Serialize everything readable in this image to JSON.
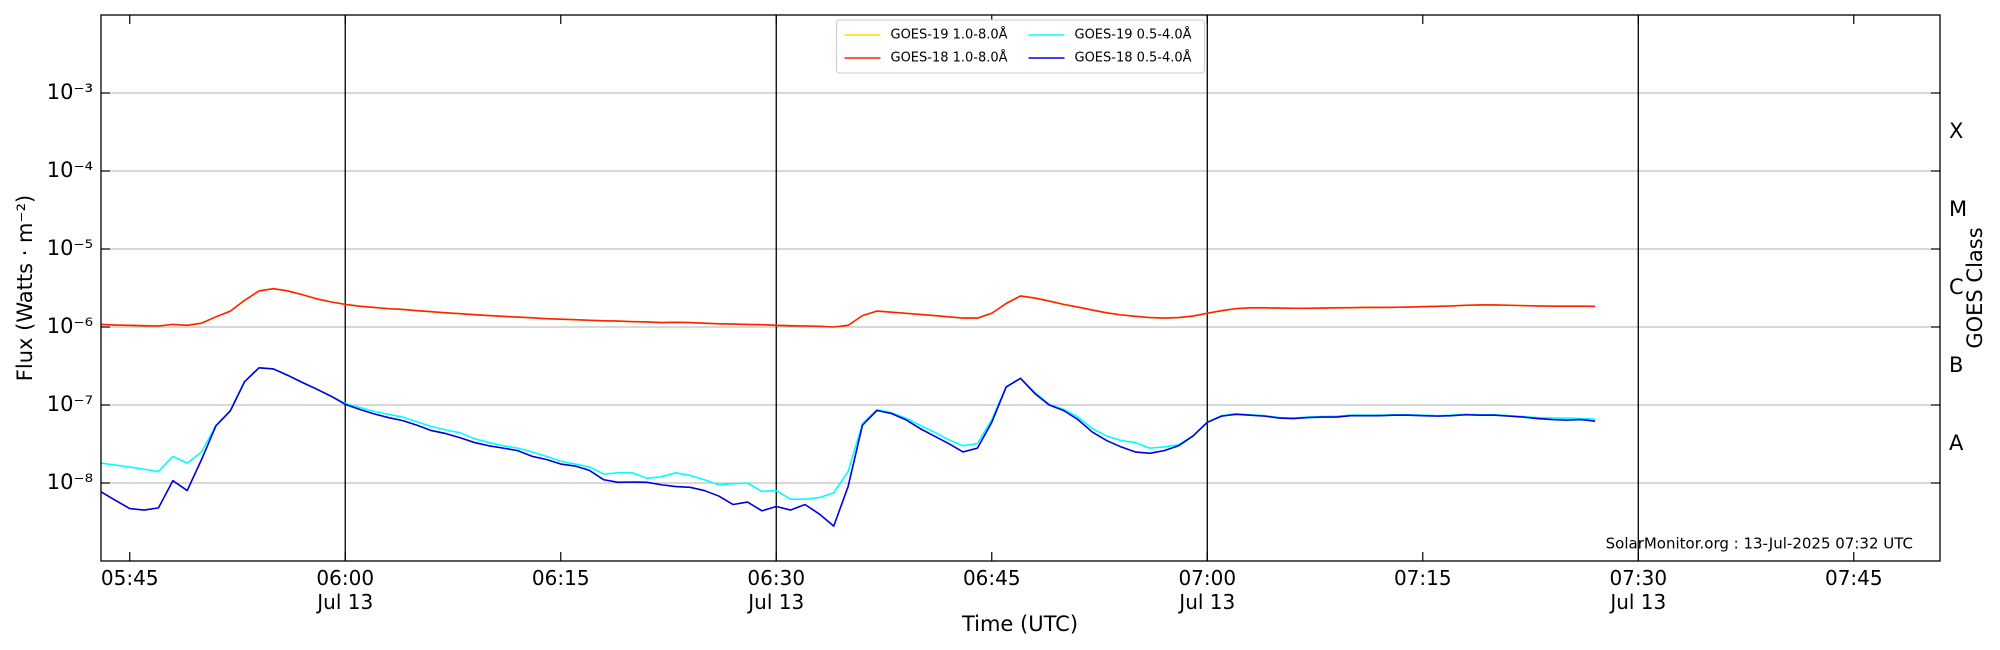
{
  "chart_data": {
    "type": "line",
    "xlabel": "Time (UTC)",
    "ylabel": "Flux (Watts · m⁻²)",
    "y2label": "GOES Class",
    "annotation": "SolarMonitor.org : 13-Jul-2025 07:32 UTC",
    "yscale": "log",
    "grid": true,
    "legend": "upper center",
    "xlim": [
      "05:43",
      "07:51"
    ],
    "xticks": [
      {
        "value": "05:45",
        "label": "05:45"
      },
      {
        "value": "06:00",
        "label": "06:00\nJul 13"
      },
      {
        "value": "06:15",
        "label": "06:15"
      },
      {
        "value": "06:30",
        "label": "06:30\nJul 13"
      },
      {
        "value": "06:45",
        "label": "06:45"
      },
      {
        "value": "07:00",
        "label": "07:00\nJul 13"
      },
      {
        "value": "07:15",
        "label": "07:15"
      },
      {
        "value": "07:30",
        "label": "07:30\nJul 13"
      },
      {
        "value": "07:45",
        "label": "07:45"
      }
    ],
    "vlines": [
      "06:00",
      "06:30",
      "07:00",
      "07:30"
    ],
    "ylim": [
      1e-09,
      0.01
    ],
    "yticks": [
      {
        "value": 1e-08,
        "label": "10⁻⁸"
      },
      {
        "value": 1e-07,
        "label": "10⁻⁷"
      },
      {
        "value": 1e-06,
        "label": "10⁻⁶"
      },
      {
        "value": 1e-05,
        "label": "10⁻⁵"
      },
      {
        "value": 0.0001,
        "label": "10⁻⁴"
      },
      {
        "value": 0.001,
        "label": "10⁻³"
      }
    ],
    "y2_classes": [
      {
        "label": "A",
        "range": [
          1e-08,
          1e-07
        ]
      },
      {
        "label": "B",
        "range": [
          1e-07,
          1e-06
        ]
      },
      {
        "label": "C",
        "range": [
          1e-06,
          1e-05
        ]
      },
      {
        "label": "M",
        "range": [
          1e-05,
          0.0001
        ]
      },
      {
        "label": "X",
        "range": [
          0.0001,
          0.001
        ]
      }
    ],
    "x": [
      "05:43",
      "05:44",
      "05:45",
      "05:46",
      "05:47",
      "05:48",
      "05:49",
      "05:50",
      "05:51",
      "05:52",
      "05:53",
      "05:54",
      "05:55",
      "05:56",
      "05:57",
      "05:58",
      "05:59",
      "06:00",
      "06:01",
      "06:02",
      "06:03",
      "06:04",
      "06:05",
      "06:06",
      "06:07",
      "06:08",
      "06:09",
      "06:10",
      "06:11",
      "06:12",
      "06:13",
      "06:14",
      "06:15",
      "06:16",
      "06:17",
      "06:18",
      "06:19",
      "06:20",
      "06:21",
      "06:22",
      "06:23",
      "06:24",
      "06:25",
      "06:26",
      "06:27",
      "06:28",
      "06:29",
      "06:30",
      "06:31",
      "06:32",
      "06:33",
      "06:34",
      "06:35",
      "06:36",
      "06:37",
      "06:38",
      "06:39",
      "06:40",
      "06:41",
      "06:42",
      "06:43",
      "06:44",
      "06:45",
      "06:46",
      "06:47",
      "06:48",
      "06:49",
      "06:50",
      "06:51",
      "06:52",
      "06:53",
      "06:54",
      "06:55",
      "06:56",
      "06:57",
      "06:58",
      "06:59",
      "07:00",
      "07:01",
      "07:02",
      "07:03",
      "07:04",
      "07:05",
      "07:06",
      "07:07",
      "07:08",
      "07:09",
      "07:10",
      "07:11",
      "07:12",
      "07:13",
      "07:14",
      "07:15",
      "07:16",
      "07:17",
      "07:18",
      "07:19",
      "07:20",
      "07:21",
      "07:22",
      "07:23",
      "07:24",
      "07:25",
      "07:26",
      "07:27"
    ],
    "series": [
      {
        "name": "GOES-19 1.0-8.0Å",
        "color": "#ffd700",
        "values": [
          1.08e-06,
          1.06e-06,
          1.05e-06,
          1.04e-06,
          1.03e-06,
          1.08e-06,
          1.05e-06,
          1.12e-06,
          1.35e-06,
          1.6e-06,
          2.2e-06,
          2.9e-06,
          3.1e-06,
          2.9e-06,
          2.6e-06,
          2.3e-06,
          2.1e-06,
          1.95e-06,
          1.85e-06,
          1.78e-06,
          1.72e-06,
          1.68e-06,
          1.62e-06,
          1.57e-06,
          1.52e-06,
          1.48e-06,
          1.44e-06,
          1.4e-06,
          1.37e-06,
          1.34e-06,
          1.31e-06,
          1.28e-06,
          1.26e-06,
          1.24e-06,
          1.22e-06,
          1.2e-06,
          1.19e-06,
          1.17e-06,
          1.16e-06,
          1.14e-06,
          1.15e-06,
          1.14e-06,
          1.12e-06,
          1.1e-06,
          1.09e-06,
          1.08e-06,
          1.07e-06,
          1.05e-06,
          1.04e-06,
          1.03e-06,
          1.02e-06,
          1e-06,
          1.05e-06,
          1.4e-06,
          1.6e-06,
          1.55e-06,
          1.5e-06,
          1.45e-06,
          1.4e-06,
          1.35e-06,
          1.3e-06,
          1.3e-06,
          1.5e-06,
          2e-06,
          2.5e-06,
          2.35e-06,
          2.15e-06,
          1.95e-06,
          1.8e-06,
          1.65e-06,
          1.52e-06,
          1.43e-06,
          1.37e-06,
          1.32e-06,
          1.3e-06,
          1.32e-06,
          1.38e-06,
          1.5e-06,
          1.62e-06,
          1.72e-06,
          1.76e-06,
          1.76e-06,
          1.75e-06,
          1.74e-06,
          1.74e-06,
          1.75e-06,
          1.76e-06,
          1.77e-06,
          1.78e-06,
          1.78e-06,
          1.79e-06,
          1.8e-06,
          1.82e-06,
          1.84e-06,
          1.86e-06,
          1.9e-06,
          1.92e-06,
          1.92e-06,
          1.9e-06,
          1.88e-06,
          1.86e-06,
          1.85e-06,
          1.85e-06,
          1.85e-06,
          1.84e-06
        ]
      },
      {
        "name": "GOES-18 1.0-8.0Å",
        "color": "#ff2200",
        "values": [
          1.08e-06,
          1.06e-06,
          1.05e-06,
          1.04e-06,
          1.03e-06,
          1.08e-06,
          1.05e-06,
          1.12e-06,
          1.35e-06,
          1.6e-06,
          2.2e-06,
          2.9e-06,
          3.1e-06,
          2.9e-06,
          2.6e-06,
          2.3e-06,
          2.1e-06,
          1.95e-06,
          1.85e-06,
          1.78e-06,
          1.72e-06,
          1.68e-06,
          1.62e-06,
          1.57e-06,
          1.52e-06,
          1.48e-06,
          1.44e-06,
          1.4e-06,
          1.37e-06,
          1.34e-06,
          1.31e-06,
          1.28e-06,
          1.26e-06,
          1.24e-06,
          1.22e-06,
          1.2e-06,
          1.19e-06,
          1.17e-06,
          1.16e-06,
          1.14e-06,
          1.15e-06,
          1.14e-06,
          1.12e-06,
          1.1e-06,
          1.09e-06,
          1.08e-06,
          1.07e-06,
          1.05e-06,
          1.04e-06,
          1.03e-06,
          1.02e-06,
          1e-06,
          1.05e-06,
          1.4e-06,
          1.6e-06,
          1.55e-06,
          1.5e-06,
          1.45e-06,
          1.4e-06,
          1.35e-06,
          1.3e-06,
          1.3e-06,
          1.5e-06,
          2e-06,
          2.5e-06,
          2.35e-06,
          2.15e-06,
          1.95e-06,
          1.8e-06,
          1.65e-06,
          1.52e-06,
          1.43e-06,
          1.37e-06,
          1.32e-06,
          1.3e-06,
          1.32e-06,
          1.38e-06,
          1.5e-06,
          1.62e-06,
          1.72e-06,
          1.76e-06,
          1.76e-06,
          1.75e-06,
          1.74e-06,
          1.74e-06,
          1.75e-06,
          1.76e-06,
          1.77e-06,
          1.78e-06,
          1.78e-06,
          1.79e-06,
          1.8e-06,
          1.82e-06,
          1.84e-06,
          1.86e-06,
          1.9e-06,
          1.92e-06,
          1.92e-06,
          1.9e-06,
          1.88e-06,
          1.86e-06,
          1.85e-06,
          1.85e-06,
          1.85e-06,
          1.84e-06
        ]
      },
      {
        "name": "GOES-19 0.5-4.0Å",
        "color": "#00ffff",
        "values": [
          1.8e-08,
          1.7e-08,
          1.6e-08,
          1.5e-08,
          1.4e-08,
          2.2e-08,
          1.8e-08,
          2.5e-08,
          5.5e-08,
          8.5e-08,
          2e-07,
          3e-07,
          2.9e-07,
          2.4e-07,
          1.95e-07,
          1.6e-07,
          1.3e-07,
          1.05e-07,
          9.3e-08,
          8.3e-08,
          7.6e-08,
          7e-08,
          6.1e-08,
          5.3e-08,
          4.8e-08,
          4.4e-08,
          3.7e-08,
          3.3e-08,
          3e-08,
          2.8e-08,
          2.5e-08,
          2.2e-08,
          1.9e-08,
          1.75e-08,
          1.6e-08,
          1.3e-08,
          1.35e-08,
          1.35e-08,
          1.15e-08,
          1.2e-08,
          1.35e-08,
          1.25e-08,
          1.1e-08,
          9.5e-09,
          9.8e-09,
          1e-08,
          7.8e-09,
          8e-09,
          6.2e-09,
          6.2e-09,
          6.5e-09,
          7.5e-09,
          1.4e-08,
          5.8e-08,
          8.7e-08,
          8e-08,
          6.8e-08,
          5.5e-08,
          4.5e-08,
          3.6e-08,
          3e-08,
          3.2e-08,
          6.5e-08,
          1.7e-07,
          2.2e-07,
          1.45e-07,
          1.02e-07,
          8.8e-08,
          7e-08,
          5e-08,
          4e-08,
          3.5e-08,
          3.3e-08,
          2.8e-08,
          2.9e-08,
          3.1e-08,
          4e-08,
          6e-08,
          7.3e-08,
          7.7e-08,
          7.5e-08,
          7.3e-08,
          6.9e-08,
          6.8e-08,
          7e-08,
          7.1e-08,
          7.2e-08,
          7.4e-08,
          7.4e-08,
          7.4e-08,
          7.5e-08,
          7.5e-08,
          7.4e-08,
          7.3e-08,
          7.4e-08,
          7.6e-08,
          7.5e-08,
          7.5e-08,
          7.3e-08,
          7.1e-08,
          6.9e-08,
          6.8e-08,
          6.8e-08,
          6.7e-08,
          6.6e-08
        ]
      },
      {
        "name": "GOES-18 0.5-4.0Å",
        "color": "#0000dd",
        "values": [
          7.7e-09,
          6e-09,
          4.7e-09,
          4.5e-09,
          4.8e-09,
          1.07e-08,
          8e-09,
          2e-08,
          5.4e-08,
          8.4e-08,
          2e-07,
          3e-07,
          2.9e-07,
          2.4e-07,
          1.95e-07,
          1.6e-07,
          1.3e-07,
          1.02e-07,
          8.8e-08,
          7.7e-08,
          6.9e-08,
          6.3e-08,
          5.5e-08,
          4.7e-08,
          4.3e-08,
          3.8e-08,
          3.3e-08,
          3e-08,
          2.8e-08,
          2.6e-08,
          2.2e-08,
          2e-08,
          1.75e-08,
          1.65e-08,
          1.45e-08,
          1.1e-08,
          1.02e-08,
          1.03e-08,
          1.02e-08,
          9.5e-09,
          9e-09,
          8.8e-09,
          8e-09,
          6.8e-09,
          5.3e-09,
          5.7e-09,
          4.4e-09,
          5e-09,
          4.5e-09,
          5.3e-09,
          4e-09,
          2.8e-09,
          9e-09,
          5.5e-08,
          8.5e-08,
          7.8e-08,
          6.5e-08,
          5e-08,
          4e-08,
          3.2e-08,
          2.5e-08,
          2.8e-08,
          6e-08,
          1.7e-07,
          2.2e-07,
          1.4e-07,
          1e-07,
          8.5e-08,
          6.5e-08,
          4.5e-08,
          3.5e-08,
          2.9e-08,
          2.5e-08,
          2.4e-08,
          2.6e-08,
          3e-08,
          4e-08,
          6e-08,
          7.2e-08,
          7.6e-08,
          7.4e-08,
          7.2e-08,
          6.8e-08,
          6.7e-08,
          6.9e-08,
          7e-08,
          7e-08,
          7.3e-08,
          7.3e-08,
          7.3e-08,
          7.4e-08,
          7.4e-08,
          7.3e-08,
          7.2e-08,
          7.3e-08,
          7.5e-08,
          7.4e-08,
          7.4e-08,
          7.2e-08,
          7e-08,
          6.7e-08,
          6.5e-08,
          6.4e-08,
          6.5e-08,
          6.2e-08
        ]
      }
    ]
  }
}
